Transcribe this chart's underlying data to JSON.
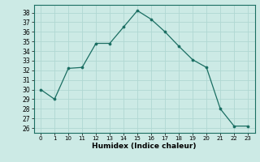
{
  "x_labels": [
    "0",
    "1",
    "10",
    "11",
    "12",
    "13",
    "14",
    "15",
    "16",
    "17",
    "18",
    "19",
    "20",
    "21",
    "22",
    "23"
  ],
  "y": [
    30,
    29,
    32.2,
    32.3,
    34.8,
    34.8,
    36.5,
    38.2,
    37.3,
    36.0,
    34.5,
    33.1,
    32.3,
    28.0,
    26.2,
    26.2
  ],
  "yticks": [
    26,
    27,
    28,
    29,
    30,
    31,
    32,
    33,
    34,
    35,
    36,
    37,
    38
  ],
  "ylim": [
    25.5,
    38.8
  ],
  "xlabel": "Humidex (Indice chaleur)",
  "bg_color": "#cceae5",
  "grid_color": "#b0d8d2",
  "line_color": "#1a6e62",
  "marker_color": "#1a6e62"
}
